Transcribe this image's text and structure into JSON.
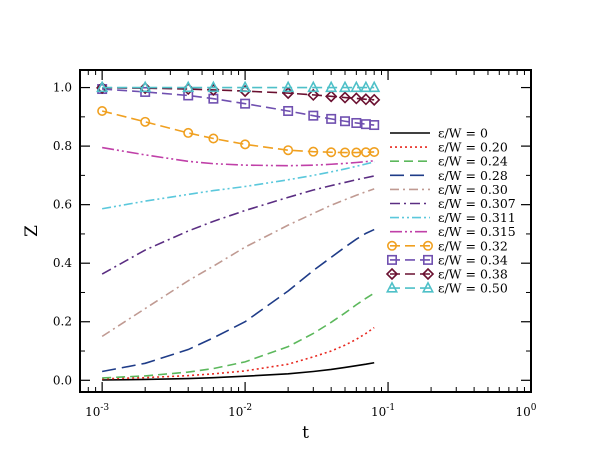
{
  "chart_data": {
    "type": "line",
    "xlabel": "t",
    "ylabel": "Z",
    "xscale": "log",
    "xlim": [
      0.0007,
      1
    ],
    "ylim": [
      -0.04,
      1.06
    ],
    "x_ticks": [
      {
        "value": 0.001,
        "base": "10",
        "exp": "-3"
      },
      {
        "value": 0.01,
        "base": "10",
        "exp": "-2"
      },
      {
        "value": 0.1,
        "base": "10",
        "exp": "-1"
      },
      {
        "value": 1,
        "base": "10",
        "exp": "0"
      }
    ],
    "y_ticks": [
      {
        "value": 0.0,
        "label": "0.0"
      },
      {
        "value": 0.2,
        "label": "0.2"
      },
      {
        "value": 0.4,
        "label": "0.4"
      },
      {
        "value": 0.6,
        "label": "0.6"
      },
      {
        "value": 0.8,
        "label": "0.8"
      },
      {
        "value": 1.0,
        "label": "1.0"
      }
    ],
    "grid": false,
    "legend_position": "right",
    "series": [
      {
        "name": "ε/W = 0",
        "color": "#000000",
        "dash": "",
        "marker": "none",
        "x": [
          0.001,
          0.002,
          0.004,
          0.006,
          0.01,
          0.02,
          0.03,
          0.04,
          0.05,
          0.06,
          0.07,
          0.08
        ],
        "y": [
          0.001,
          0.003,
          0.006,
          0.009,
          0.014,
          0.022,
          0.03,
          0.037,
          0.044,
          0.05,
          0.055,
          0.06
        ]
      },
      {
        "name": "ε/W = 0.20",
        "color": "#e8281f",
        "dash": "2,3",
        "marker": "none",
        "x": [
          0.001,
          0.002,
          0.004,
          0.006,
          0.01,
          0.02,
          0.03,
          0.04,
          0.05,
          0.06,
          0.07,
          0.08
        ],
        "y": [
          0.005,
          0.009,
          0.016,
          0.022,
          0.032,
          0.055,
          0.08,
          0.1,
          0.12,
          0.14,
          0.16,
          0.18
        ]
      },
      {
        "name": "ε/W = 0.24",
        "color": "#5cb85c",
        "dash": "9,5",
        "marker": "none",
        "x": [
          0.001,
          0.002,
          0.004,
          0.006,
          0.01,
          0.02,
          0.03,
          0.04,
          0.05,
          0.06,
          0.07,
          0.08
        ],
        "y": [
          0.008,
          0.015,
          0.028,
          0.04,
          0.063,
          0.115,
          0.16,
          0.198,
          0.23,
          0.258,
          0.28,
          0.298
        ]
      },
      {
        "name": "ε/W = 0.28",
        "color": "#1f3c88",
        "dash": "14,6",
        "marker": "none",
        "x": [
          0.001,
          0.002,
          0.004,
          0.006,
          0.01,
          0.02,
          0.03,
          0.04,
          0.05,
          0.06,
          0.07,
          0.08
        ],
        "y": [
          0.03,
          0.058,
          0.105,
          0.145,
          0.2,
          0.305,
          0.375,
          0.42,
          0.455,
          0.482,
          0.502,
          0.515
        ]
      },
      {
        "name": "ε/W = 0.30",
        "color": "#c09a92",
        "dash": "9,4,2,4",
        "marker": "none",
        "x": [
          0.001,
          0.002,
          0.004,
          0.006,
          0.01,
          0.02,
          0.03,
          0.04,
          0.05,
          0.06,
          0.07,
          0.08
        ],
        "y": [
          0.15,
          0.245,
          0.34,
          0.39,
          0.455,
          0.53,
          0.57,
          0.598,
          0.617,
          0.632,
          0.644,
          0.654
        ]
      },
      {
        "name": "ε/W = 0.307",
        "color": "#5a2d82",
        "dash": "10,4,2,4",
        "marker": "none",
        "x": [
          0.001,
          0.002,
          0.004,
          0.006,
          0.01,
          0.02,
          0.03,
          0.04,
          0.05,
          0.06,
          0.07,
          0.08
        ],
        "y": [
          0.363,
          0.445,
          0.51,
          0.543,
          0.58,
          0.625,
          0.65,
          0.665,
          0.676,
          0.685,
          0.692,
          0.698
        ]
      },
      {
        "name": "ε/W = 0.311",
        "color": "#5bc8dc",
        "dash": "9,3,2,3,2,3",
        "marker": "none",
        "x": [
          0.001,
          0.002,
          0.004,
          0.006,
          0.01,
          0.02,
          0.03,
          0.04,
          0.05,
          0.06,
          0.07,
          0.08
        ],
        "y": [
          0.586,
          0.612,
          0.635,
          0.648,
          0.662,
          0.685,
          0.7,
          0.712,
          0.722,
          0.731,
          0.739,
          0.746
        ]
      },
      {
        "name": "ε/W = 0.315",
        "color": "#c040a8",
        "dash": "12,3,2,3,2,3",
        "marker": "none",
        "x": [
          0.001,
          0.002,
          0.004,
          0.006,
          0.01,
          0.02,
          0.03,
          0.04,
          0.05,
          0.06,
          0.07,
          0.08
        ],
        "y": [
          0.795,
          0.77,
          0.748,
          0.74,
          0.735,
          0.733,
          0.735,
          0.738,
          0.741,
          0.744,
          0.747,
          0.75
        ]
      },
      {
        "name": "ε/W = 0.32",
        "color": "#f0a020",
        "dash": "10,5",
        "marker": "circle",
        "x": [
          0.001,
          0.002,
          0.004,
          0.006,
          0.01,
          0.02,
          0.03,
          0.04,
          0.05,
          0.06,
          0.07,
          0.08
        ],
        "y": [
          0.92,
          0.883,
          0.845,
          0.826,
          0.806,
          0.786,
          0.781,
          0.779,
          0.778,
          0.778,
          0.779,
          0.78
        ]
      },
      {
        "name": "ε/W = 0.34",
        "color": "#7050b0",
        "dash": "10,5",
        "marker": "square",
        "x": [
          0.001,
          0.002,
          0.004,
          0.006,
          0.01,
          0.02,
          0.03,
          0.04,
          0.05,
          0.06,
          0.07,
          0.08
        ],
        "y": [
          0.995,
          0.985,
          0.973,
          0.962,
          0.945,
          0.92,
          0.904,
          0.893,
          0.885,
          0.879,
          0.875,
          0.872
        ]
      },
      {
        "name": "ε/W = 0.38",
        "color": "#6a1030",
        "dash": "10,5",
        "marker": "diamond",
        "x": [
          0.001,
          0.002,
          0.004,
          0.006,
          0.01,
          0.02,
          0.03,
          0.04,
          0.05,
          0.06,
          0.07,
          0.08
        ],
        "y": [
          0.999,
          0.998,
          0.995,
          0.992,
          0.988,
          0.981,
          0.975,
          0.97,
          0.966,
          0.963,
          0.96,
          0.958
        ]
      },
      {
        "name": "ε/W = 0.50",
        "color": "#4ec0c8",
        "dash": "10,5",
        "marker": "triangle",
        "x": [
          0.001,
          0.002,
          0.004,
          0.006,
          0.01,
          0.02,
          0.03,
          0.04,
          0.05,
          0.06,
          0.07,
          0.08
        ],
        "y": [
          1.0,
          1.0,
          1.0,
          1.0,
          1.0,
          1.0,
          1.0,
          1.0,
          1.0,
          1.0,
          1.0,
          1.0
        ]
      }
    ]
  }
}
